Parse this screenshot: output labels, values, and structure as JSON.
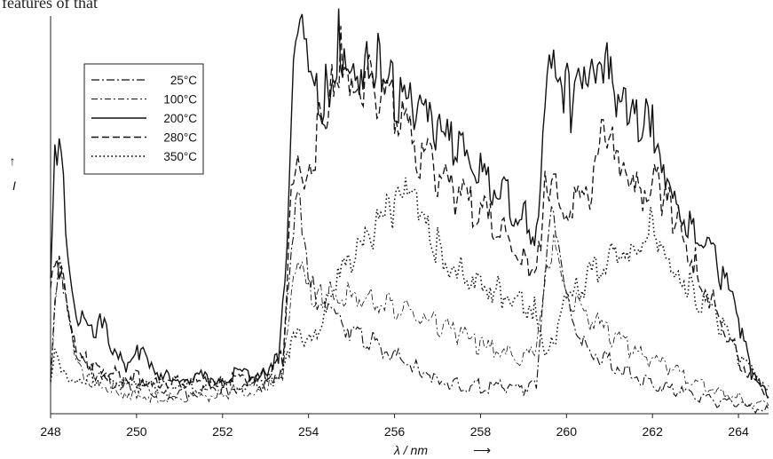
{
  "page_fragment": "features of that",
  "chart_data": {
    "type": "line",
    "xlabel": "λ / nm",
    "xlabel_arrow": "⟶",
    "ylabel": "I",
    "ylabel_arrow": "↑",
    "xlim": [
      248,
      264.7
    ],
    "ylim": [
      0,
      100
    ],
    "xticks": [
      248,
      250,
      252,
      254,
      256,
      258,
      260,
      262,
      264
    ],
    "grid": false,
    "legend_position": "top-left",
    "series": [
      {
        "name": "25°C",
        "dash": "dash-dot",
        "points": [
          [
            248.0,
            8
          ],
          [
            248.1,
            30
          ],
          [
            248.2,
            40
          ],
          [
            248.4,
            28
          ],
          [
            248.6,
            15
          ],
          [
            249.0,
            10
          ],
          [
            249.5,
            7
          ],
          [
            250.0,
            6
          ],
          [
            250.5,
            5
          ],
          [
            251.0,
            5
          ],
          [
            252.0,
            6
          ],
          [
            253.0,
            7
          ],
          [
            253.4,
            12
          ],
          [
            253.6,
            45
          ],
          [
            253.75,
            60
          ],
          [
            253.85,
            50
          ],
          [
            254.0,
            36
          ],
          [
            254.2,
            28
          ],
          [
            254.5,
            24
          ],
          [
            255.0,
            21
          ],
          [
            255.5,
            18
          ],
          [
            256.0,
            15
          ],
          [
            256.5,
            12
          ],
          [
            257.0,
            9
          ],
          [
            257.5,
            7
          ],
          [
            258.0,
            7
          ],
          [
            258.5,
            7
          ],
          [
            259.0,
            6
          ],
          [
            259.3,
            7
          ],
          [
            259.5,
            32
          ],
          [
            259.65,
            52
          ],
          [
            259.8,
            40
          ],
          [
            260.0,
            28
          ],
          [
            260.4,
            18
          ],
          [
            261.0,
            13
          ],
          [
            261.5,
            10
          ],
          [
            262.0,
            8
          ],
          [
            262.5,
            6
          ],
          [
            263.0,
            4
          ],
          [
            263.5,
            3
          ],
          [
            264.0,
            2
          ],
          [
            264.7,
            1
          ]
        ]
      },
      {
        "name": "100°C",
        "dash": "dash-dot-thin",
        "points": [
          [
            248.0,
            9
          ],
          [
            248.1,
            28
          ],
          [
            248.2,
            36
          ],
          [
            248.4,
            24
          ],
          [
            248.6,
            12
          ],
          [
            249.0,
            8
          ],
          [
            249.5,
            6
          ],
          [
            250.0,
            5
          ],
          [
            250.5,
            4
          ],
          [
            251.0,
            4
          ],
          [
            252.0,
            5
          ],
          [
            253.0,
            6
          ],
          [
            253.4,
            10
          ],
          [
            253.6,
            28
          ],
          [
            253.75,
            38
          ],
          [
            253.9,
            32
          ],
          [
            254.2,
            30
          ],
          [
            254.5,
            30
          ],
          [
            255.0,
            31
          ],
          [
            255.5,
            29
          ],
          [
            256.0,
            27
          ],
          [
            256.5,
            24
          ],
          [
            257.0,
            22
          ],
          [
            257.5,
            20
          ],
          [
            258.0,
            17
          ],
          [
            258.5,
            15
          ],
          [
            259.0,
            14
          ],
          [
            259.3,
            16
          ],
          [
            259.5,
            32
          ],
          [
            259.7,
            45
          ],
          [
            259.85,
            38
          ],
          [
            260.0,
            30
          ],
          [
            260.5,
            24
          ],
          [
            261.0,
            20
          ],
          [
            261.5,
            16
          ],
          [
            262.0,
            13
          ],
          [
            262.5,
            11
          ],
          [
            263.0,
            8
          ],
          [
            263.5,
            6
          ],
          [
            264.0,
            4
          ],
          [
            264.7,
            2
          ]
        ]
      },
      {
        "name": "200°C",
        "dash": "solid",
        "points": [
          [
            248.0,
            33
          ],
          [
            248.1,
            62
          ],
          [
            248.2,
            70
          ],
          [
            248.3,
            62
          ],
          [
            248.4,
            40
          ],
          [
            248.6,
            25
          ],
          [
            249.0,
            20
          ],
          [
            249.2,
            24
          ],
          [
            249.4,
            15
          ],
          [
            249.8,
            12
          ],
          [
            250.1,
            16
          ],
          [
            250.3,
            11
          ],
          [
            250.7,
            10
          ],
          [
            251.0,
            9
          ],
          [
            252.0,
            9
          ],
          [
            253.0,
            11
          ],
          [
            253.3,
            15
          ],
          [
            253.5,
            45
          ],
          [
            253.6,
            80
          ],
          [
            253.7,
            90
          ],
          [
            253.8,
            98
          ],
          [
            253.9,
            90
          ],
          [
            254.1,
            78
          ],
          [
            254.4,
            80
          ],
          [
            254.7,
            96
          ],
          [
            255.0,
            90
          ],
          [
            255.4,
            86
          ],
          [
            255.7,
            88
          ],
          [
            256.0,
            82
          ],
          [
            256.5,
            76
          ],
          [
            257.0,
            70
          ],
          [
            257.5,
            66
          ],
          [
            258.0,
            60
          ],
          [
            258.5,
            55
          ],
          [
            259.0,
            50
          ],
          [
            259.3,
            45
          ],
          [
            259.5,
            80
          ],
          [
            259.6,
            95
          ],
          [
            259.7,
            97
          ],
          [
            259.85,
            86
          ],
          [
            260.1,
            78
          ],
          [
            260.5,
            80
          ],
          [
            260.9,
            86
          ],
          [
            261.2,
            78
          ],
          [
            261.5,
            76
          ],
          [
            261.8,
            72
          ],
          [
            262.0,
            74
          ],
          [
            262.3,
            62
          ],
          [
            262.6,
            55
          ],
          [
            263.0,
            45
          ],
          [
            263.5,
            38
          ],
          [
            264.0,
            24
          ],
          [
            264.3,
            10
          ],
          [
            264.7,
            4
          ]
        ]
      },
      {
        "name": "280°C",
        "dash": "dashed",
        "points": [
          [
            248.0,
            35
          ],
          [
            248.1,
            40
          ],
          [
            248.2,
            38
          ],
          [
            248.4,
            25
          ],
          [
            248.6,
            15
          ],
          [
            249.0,
            12
          ],
          [
            249.5,
            10
          ],
          [
            250.0,
            9
          ],
          [
            250.5,
            8
          ],
          [
            251.0,
            8
          ],
          [
            252.0,
            8
          ],
          [
            253.0,
            10
          ],
          [
            253.4,
            14
          ],
          [
            253.5,
            32
          ],
          [
            253.6,
            55
          ],
          [
            253.75,
            62
          ],
          [
            253.9,
            55
          ],
          [
            254.2,
            70
          ],
          [
            254.5,
            80
          ],
          [
            254.75,
            92
          ],
          [
            255.0,
            86
          ],
          [
            255.5,
            84
          ],
          [
            256.0,
            76
          ],
          [
            256.5,
            66
          ],
          [
            257.0,
            60
          ],
          [
            257.5,
            55
          ],
          [
            258.0,
            50
          ],
          [
            258.5,
            45
          ],
          [
            259.0,
            40
          ],
          [
            259.3,
            36
          ],
          [
            259.5,
            55
          ],
          [
            259.7,
            65
          ],
          [
            259.85,
            58
          ],
          [
            260.0,
            52
          ],
          [
            260.5,
            55
          ],
          [
            260.9,
            72
          ],
          [
            261.2,
            60
          ],
          [
            261.5,
            55
          ],
          [
            262.0,
            58
          ],
          [
            262.3,
            54
          ],
          [
            262.6,
            48
          ],
          [
            263.0,
            38
          ],
          [
            263.5,
            26
          ],
          [
            264.0,
            14
          ],
          [
            264.7,
            4
          ]
        ]
      },
      {
        "name": "350°C",
        "dash": "dotted",
        "points": [
          [
            248.0,
            8
          ],
          [
            248.1,
            14
          ],
          [
            248.2,
            13
          ],
          [
            248.4,
            10
          ],
          [
            248.6,
            9
          ],
          [
            249.0,
            9
          ],
          [
            249.5,
            8
          ],
          [
            250.0,
            7
          ],
          [
            250.5,
            7
          ],
          [
            251.0,
            7
          ],
          [
            252.0,
            7
          ],
          [
            253.0,
            8
          ],
          [
            253.4,
            10
          ],
          [
            253.6,
            18
          ],
          [
            253.75,
            22
          ],
          [
            253.9,
            20
          ],
          [
            254.2,
            22
          ],
          [
            254.5,
            30
          ],
          [
            255.0,
            38
          ],
          [
            255.5,
            45
          ],
          [
            256.0,
            52
          ],
          [
            256.3,
            55
          ],
          [
            256.6,
            48
          ],
          [
            257.0,
            42
          ],
          [
            257.5,
            36
          ],
          [
            258.0,
            34
          ],
          [
            258.5,
            30
          ],
          [
            259.0,
            28
          ],
          [
            259.3,
            26
          ],
          [
            259.5,
            16
          ],
          [
            259.7,
            18
          ],
          [
            259.85,
            24
          ],
          [
            260.0,
            28
          ],
          [
            260.5,
            34
          ],
          [
            261.0,
            40
          ],
          [
            261.5,
            42
          ],
          [
            262.0,
            48
          ],
          [
            262.3,
            42
          ],
          [
            262.6,
            36
          ],
          [
            263.0,
            30
          ],
          [
            263.5,
            24
          ],
          [
            264.0,
            14
          ],
          [
            264.7,
            7
          ]
        ]
      }
    ]
  }
}
